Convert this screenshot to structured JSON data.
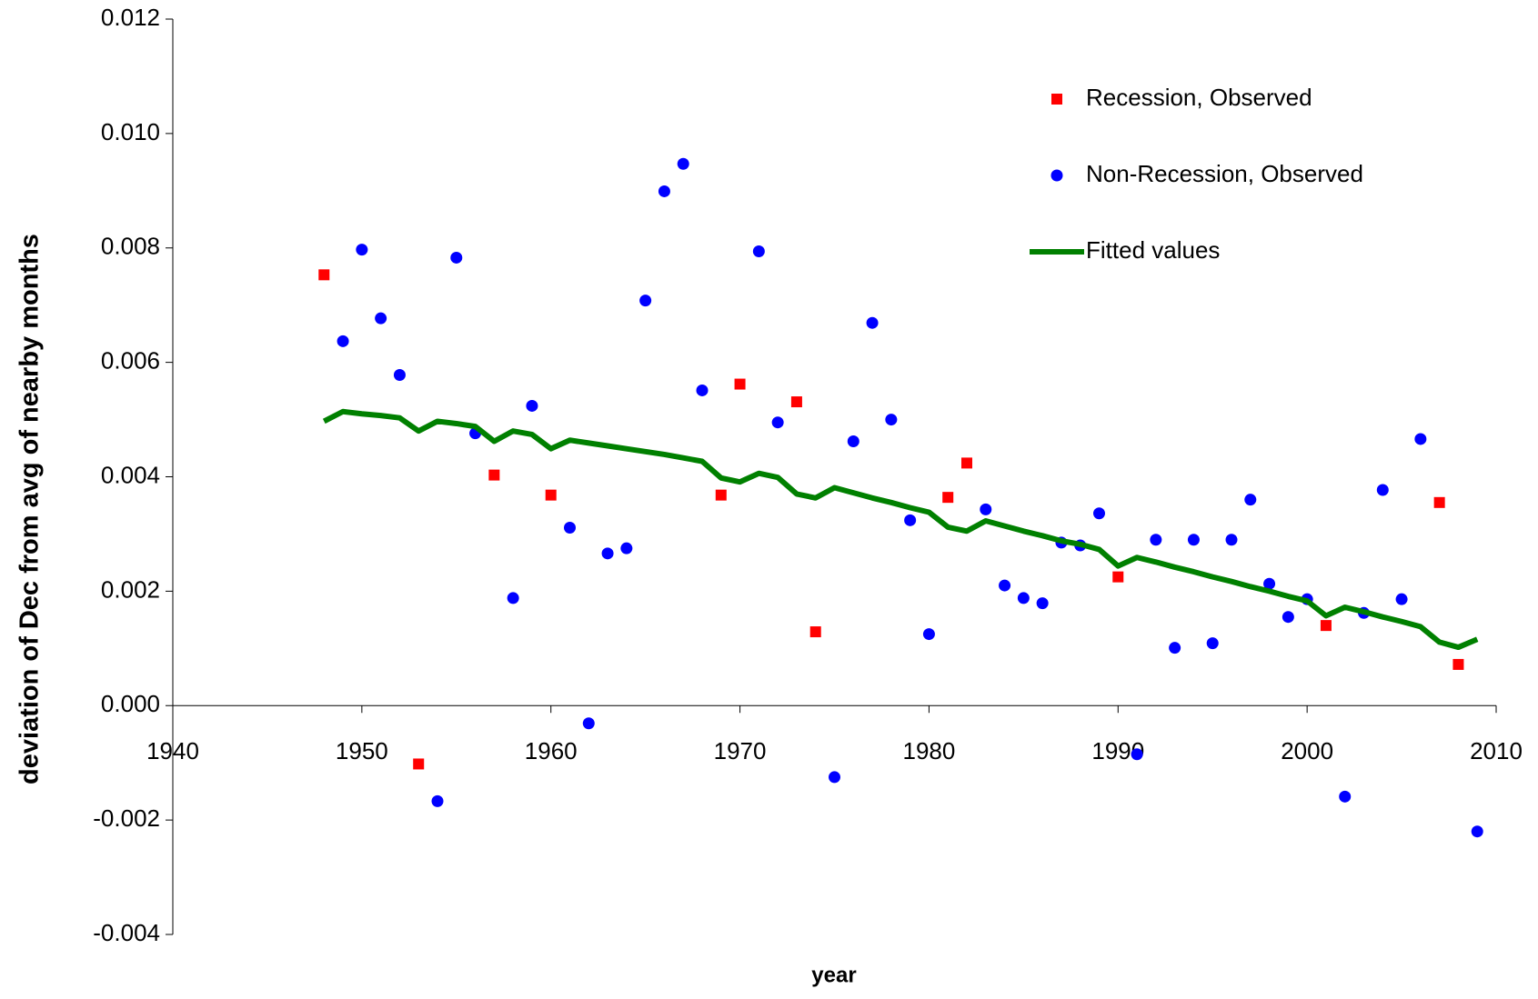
{
  "chart_data": {
    "type": "scatter",
    "x_label": "year",
    "y_label": "deviation of Dec from avg of nearby months",
    "xlim": [
      1940,
      2010
    ],
    "xticks": [
      1940,
      1950,
      1960,
      1970,
      1980,
      1990,
      2000,
      2010
    ],
    "ylim": [
      -0.004,
      0.012
    ],
    "yticks": [
      -0.004,
      -0.002,
      {
        "value": 0,
        "label": "0.000"
      },
      0.002,
      0.004,
      0.006,
      0.008,
      {
        "value": 0.01,
        "label": "0.010"
      },
      0.012
    ],
    "grid": false,
    "legend": "upper right",
    "series": [
      {
        "name": "Recession, Observed",
        "color": "#ff0000",
        "marker": "square",
        "x": [
          1948,
          1953,
          1957,
          1960,
          1969,
          1970,
          1973,
          1974,
          1981,
          1982,
          1990,
          2001,
          2007,
          2008
        ],
        "values": [
          0.00753,
          -0.00102,
          0.00403,
          0.00368,
          0.00368,
          0.00562,
          0.00531,
          0.00129,
          0.00364,
          0.00424,
          0.00225,
          0.0014,
          0.00355,
          0.00072
        ]
      },
      {
        "name": "Non-Recession, Observed",
        "color": "#0000ff",
        "marker": "circle",
        "x": [
          1949,
          1950,
          1951,
          1952,
          1954,
          1955,
          1956,
          1958,
          1959,
          1961,
          1962,
          1963,
          1964,
          1965,
          1966,
          1967,
          1968,
          1971,
          1972,
          1975,
          1976,
          1977,
          1978,
          1979,
          1980,
          1983,
          1984,
          1985,
          1986,
          1987,
          1988,
          1989,
          1991,
          1992,
          1993,
          1994,
          1995,
          1996,
          1997,
          1998,
          1999,
          2000,
          2002,
          2003,
          2004,
          2005,
          2006,
          2009
        ],
        "values": [
          0.00637,
          0.00797,
          0.00677,
          0.00578,
          -0.00167,
          0.00783,
          0.00476,
          0.00188,
          0.00524,
          0.00311,
          -0.00031,
          0.00266,
          0.00275,
          0.00708,
          0.00899,
          0.00947,
          0.00551,
          0.00794,
          0.00495,
          -0.00125,
          0.00462,
          0.00669,
          0.005,
          0.00324,
          0.00125,
          0.00343,
          0.0021,
          0.00188,
          0.00179,
          0.00285,
          0.0028,
          0.00336,
          -0.00085,
          0.0029,
          0.00101,
          0.0029,
          0.00109,
          0.0029,
          0.0036,
          0.00213,
          0.00155,
          0.00186,
          -0.00159,
          0.00162,
          0.00377,
          0.00186,
          0.00466,
          -0.0022
        ]
      },
      {
        "name": "Fitted values",
        "color": "#008000",
        "marker": "line",
        "x": [
          1948,
          1949,
          1950,
          1951,
          1952,
          1953,
          1954,
          1955,
          1956,
          1957,
          1958,
          1959,
          1960,
          1961,
          1962,
          1963,
          1964,
          1965,
          1966,
          1967,
          1968,
          1969,
          1970,
          1971,
          1972,
          1973,
          1974,
          1975,
          1976,
          1977,
          1978,
          1979,
          1980,
          1981,
          1982,
          1983,
          1984,
          1985,
          1986,
          1987,
          1988,
          1989,
          1990,
          1991,
          1992,
          1993,
          1994,
          1995,
          1996,
          1997,
          1998,
          1999,
          2000,
          2001,
          2002,
          2003,
          2004,
          2005,
          2006,
          2007,
          2008,
          2009
        ],
        "values": [
          0.00497,
          0.00514,
          0.0051,
          0.00507,
          0.00503,
          0.0048,
          0.00497,
          0.00493,
          0.00488,
          0.00462,
          0.0048,
          0.00474,
          0.00449,
          0.00464,
          0.00459,
          0.00454,
          0.00449,
          0.00444,
          0.00439,
          0.00433,
          0.00427,
          0.00398,
          0.00391,
          0.00406,
          0.00399,
          0.0037,
          0.00363,
          0.00381,
          0.00372,
          0.00363,
          0.00355,
          0.00346,
          0.00338,
          0.00312,
          0.00305,
          0.00323,
          0.00314,
          0.00305,
          0.00297,
          0.00288,
          0.00282,
          0.00273,
          0.00244,
          0.00259,
          0.00251,
          0.00242,
          0.00234,
          0.00225,
          0.00217,
          0.00208,
          0.002,
          0.00191,
          0.00183,
          0.00157,
          0.00172,
          0.00164,
          0.00155,
          0.00147,
          0.00138,
          0.00111,
          0.00102,
          0.00116
        ]
      }
    ]
  }
}
